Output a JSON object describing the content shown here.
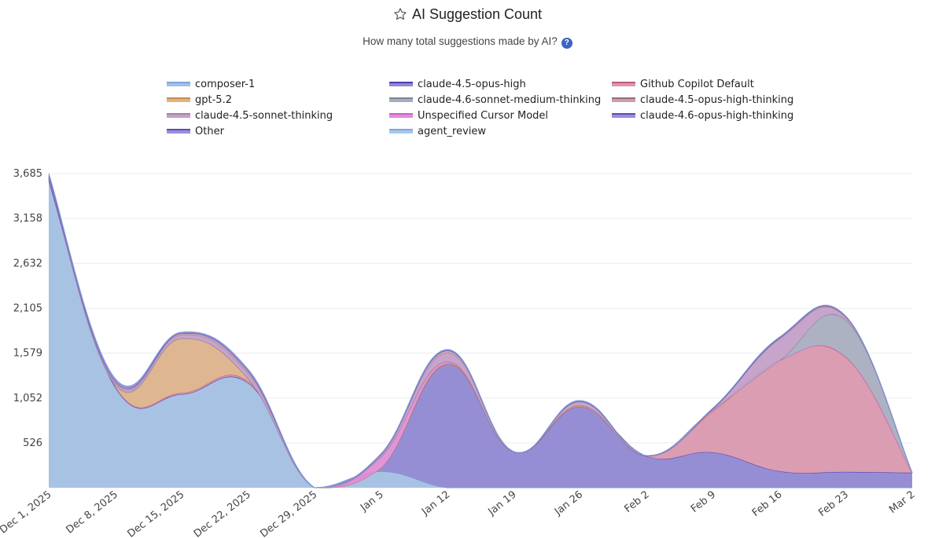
{
  "chart_data": {
    "type": "area",
    "stacked": true,
    "title": "AI Suggestion Count",
    "subtitle": "How many total suggestions made by AI?",
    "xlabel": "",
    "ylabel": "",
    "x": [
      "Dec 1, 2025",
      "Dec 8, 2025",
      "Dec 15, 2025",
      "Dec 22, 2025",
      "Dec 29, 2025",
      "Jan 5",
      "Jan 12",
      "Jan 19",
      "Jan 26",
      "Feb 2",
      "Feb 9",
      "Feb 16",
      "Feb 23",
      "Mar 2"
    ],
    "ylim": [
      0,
      3685
    ],
    "yticks": [
      "526",
      "1,052",
      "1,579",
      "2,105",
      "2,632",
      "3,158",
      "3,685"
    ],
    "ytick_values": [
      526,
      1052,
      1579,
      2105,
      2632,
      3158,
      3685
    ],
    "grid": true,
    "legend_position": "top",
    "series": [
      {
        "name": "composer-1",
        "fill": "#a3bfe3",
        "line": "#7ea6dc",
        "values": [
          3600,
          1180,
          1096,
          1230,
          0,
          190,
          0,
          0,
          0,
          0,
          0,
          0,
          0,
          0
        ]
      },
      {
        "name": "claude-4.5-opus-high",
        "fill": "#9088d2",
        "line": "#4b3fb0",
        "values": [
          0,
          0,
          0,
          0,
          0,
          40,
          1450,
          420,
          950,
          370,
          414,
          193,
          185,
          175
        ]
      },
      {
        "name": "Github Copilot Default",
        "fill": "#d898ae",
        "line": "#c25a82",
        "values": [
          20,
          10,
          15,
          20,
          0,
          0,
          0,
          0,
          0,
          5,
          480,
          1300,
          1345,
          0
        ]
      },
      {
        "name": "gpt-5.2",
        "fill": "#dcb38c",
        "line": "#c98a4a",
        "values": [
          10,
          20,
          640,
          30,
          0,
          0,
          10,
          0,
          10,
          0,
          0,
          0,
          5,
          0
        ]
      },
      {
        "name": "Unspecified Cursor Model",
        "fill": "#e08ed8",
        "line": "#d45ccb",
        "values": [
          0,
          0,
          0,
          0,
          0,
          130,
          20,
          2,
          5,
          0,
          20,
          0,
          0,
          0
        ]
      },
      {
        "name": "claude-4.6-sonnet-medium-thinking",
        "fill": "#a9aebf",
        "line": "#7f8598",
        "values": [
          0,
          0,
          0,
          0,
          0,
          0,
          0,
          0,
          0,
          0,
          0,
          0,
          430,
          0
        ]
      },
      {
        "name": "claude-4.5-sonnet-thinking",
        "fill": "#c4a0c8",
        "line": "#a77fae",
        "values": [
          10,
          20,
          40,
          60,
          0,
          20,
          100,
          0,
          40,
          0,
          10,
          250,
          30,
          0
        ]
      },
      {
        "name": "claude-4.5-opus-high-thinking",
        "fill": "#c4a2ac",
        "line": "#9e6a7c",
        "values": [
          20,
          20,
          20,
          30,
          0,
          10,
          30,
          0,
          10,
          0,
          0,
          10,
          10,
          0
        ]
      },
      {
        "name": "claude-4.6-opus-high-thinking",
        "fill": "#9b8fd8",
        "line": "#5b4cc8",
        "values": [
          0,
          0,
          0,
          0,
          0,
          0,
          0,
          0,
          0,
          0,
          4,
          5,
          5,
          0
        ]
      },
      {
        "name": "Other",
        "fill": "#9a8fd6",
        "line": "#5a4cc0",
        "values": [
          25,
          30,
          13,
          20,
          0,
          6,
          10,
          2,
          7,
          3,
          6,
          7,
          3,
          0
        ]
      },
      {
        "name": "agent_review",
        "fill": "#a8c6ec",
        "line": "#80a8dc",
        "values": [
          0,
          0,
          0,
          0,
          0,
          0,
          0,
          0,
          0,
          0,
          0,
          0,
          0,
          0
        ]
      }
    ],
    "legend_order": [
      "composer-1",
      "claude-4.5-opus-high",
      "Github Copilot Default",
      "gpt-5.2",
      "claude-4.6-sonnet-medium-thinking",
      "claude-4.5-opus-high-thinking",
      "claude-4.5-sonnet-thinking",
      "Unspecified Cursor Model",
      "claude-4.6-opus-high-thinking",
      "Other",
      "agent_review"
    ]
  }
}
